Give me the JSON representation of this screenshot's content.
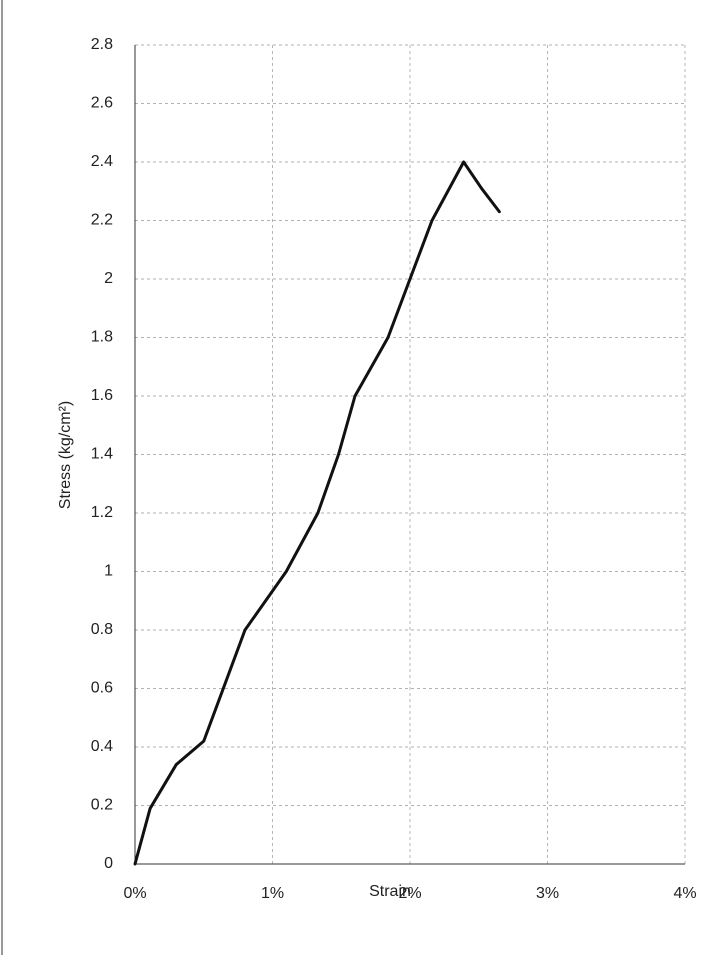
{
  "chart_data": {
    "type": "line",
    "x_label": "Strain",
    "y_label": "Stress (kg/cm²)",
    "series": [
      {
        "color": "#111111",
        "x": [
          0,
          0.11,
          0.3,
          0.5,
          0.8,
          1.1,
          1.33,
          1.48,
          1.6,
          1.84,
          2.0,
          2.16,
          2.39,
          2.52,
          2.65
        ],
        "values": [
          0,
          0.19,
          0.34,
          0.42,
          0.8,
          1.0,
          1.2,
          1.4,
          1.6,
          1.8,
          2.0,
          2.2,
          2.4,
          2.31,
          2.23
        ]
      }
    ],
    "xlim": [
      0,
      4
    ],
    "xticks": [
      {
        "value": 0,
        "label": "0%"
      },
      {
        "value": 1,
        "label": "1%"
      },
      {
        "value": 2,
        "label": "2%"
      },
      {
        "value": 3,
        "label": "3%"
      },
      {
        "value": 4,
        "label": "4%"
      }
    ],
    "ylim": [
      0,
      2.8
    ],
    "yticks": [
      0,
      0.2,
      0.4,
      0.6,
      0.8,
      1,
      1.2,
      1.4,
      1.6,
      1.8,
      2,
      2.2,
      2.4,
      2.6,
      2.8
    ],
    "grid": true
  }
}
